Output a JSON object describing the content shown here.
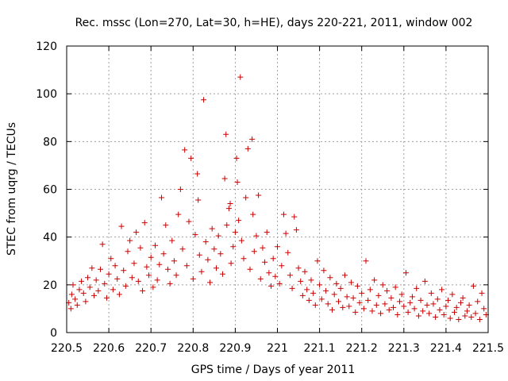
{
  "chart_data": {
    "type": "scatter",
    "title": "Rec. mssc (Lon=270, Lat=30, h=HE), days 220-221, 2011, window 002",
    "xlabel": "GPS time / Days of year 2011",
    "ylabel": "STEC from uqrg / TECUs",
    "xlim": [
      220.5,
      221.5
    ],
    "ylim": [
      0,
      120
    ],
    "xticks": [
      "220.5",
      "220.6",
      "220.7",
      "220.8",
      "220.9",
      "221",
      "221.1",
      "221.2",
      "221.3",
      "221.4",
      "221.5"
    ],
    "yticks": [
      "0",
      "20",
      "40",
      "60",
      "80",
      "100",
      "120"
    ],
    "grid": true,
    "marker": "plus",
    "color": "#cc0000",
    "points": [
      [
        220.505,
        12.5
      ],
      [
        220.51,
        10.0
      ],
      [
        220.512,
        16.0
      ],
      [
        220.515,
        20.0
      ],
      [
        220.52,
        14.0
      ],
      [
        220.525,
        11.5
      ],
      [
        220.53,
        18.0
      ],
      [
        220.535,
        21.5
      ],
      [
        220.54,
        16.5
      ],
      [
        220.545,
        13.0
      ],
      [
        220.55,
        23.0
      ],
      [
        220.555,
        19.0
      ],
      [
        220.56,
        27.0
      ],
      [
        220.565,
        15.5
      ],
      [
        220.57,
        22.0
      ],
      [
        220.575,
        17.5
      ],
      [
        220.58,
        26.5
      ],
      [
        220.585,
        37.0
      ],
      [
        220.59,
        20.5
      ],
      [
        220.595,
        14.5
      ],
      [
        220.6,
        24.5
      ],
      [
        220.605,
        31.0
      ],
      [
        220.61,
        18.0
      ],
      [
        220.615,
        28.0
      ],
      [
        220.62,
        22.5
      ],
      [
        220.625,
        16.0
      ],
      [
        220.63,
        44.5
      ],
      [
        220.635,
        26.0
      ],
      [
        220.64,
        19.5
      ],
      [
        220.645,
        34.0
      ],
      [
        220.65,
        38.5
      ],
      [
        220.655,
        23.0
      ],
      [
        220.66,
        29.0
      ],
      [
        220.665,
        42.0
      ],
      [
        220.67,
        21.5
      ],
      [
        220.675,
        35.5
      ],
      [
        220.68,
        17.5
      ],
      [
        220.685,
        46.0
      ],
      [
        220.69,
        27.5
      ],
      [
        220.695,
        24.0
      ],
      [
        220.7,
        31.5
      ],
      [
        220.705,
        19.0
      ],
      [
        220.71,
        36.5
      ],
      [
        220.715,
        22.0
      ],
      [
        220.72,
        28.5
      ],
      [
        220.725,
        56.5
      ],
      [
        220.73,
        33.0
      ],
      [
        220.735,
        45.0
      ],
      [
        220.74,
        26.5
      ],
      [
        220.745,
        20.5
      ],
      [
        220.75,
        38.5
      ],
      [
        220.755,
        30.0
      ],
      [
        220.76,
        24.0
      ],
      [
        220.765,
        49.5
      ],
      [
        220.77,
        60.0
      ],
      [
        220.775,
        35.0
      ],
      [
        220.78,
        76.5
      ],
      [
        220.785,
        28.0
      ],
      [
        220.79,
        46.5
      ],
      [
        220.795,
        73.0
      ],
      [
        220.8,
        22.5
      ],
      [
        220.805,
        41.0
      ],
      [
        220.81,
        66.5
      ],
      [
        220.812,
        55.5
      ],
      [
        220.815,
        32.5
      ],
      [
        220.82,
        25.5
      ],
      [
        220.825,
        97.5
      ],
      [
        220.83,
        38.0
      ],
      [
        220.835,
        30.5
      ],
      [
        220.84,
        21.0
      ],
      [
        220.845,
        43.5
      ],
      [
        220.85,
        35.0
      ],
      [
        220.855,
        27.0
      ],
      [
        220.86,
        40.5
      ],
      [
        220.865,
        33.0
      ],
      [
        220.87,
        24.5
      ],
      [
        220.875,
        64.5
      ],
      [
        220.878,
        83.0
      ],
      [
        220.88,
        45.0
      ],
      [
        220.885,
        52.0
      ],
      [
        220.888,
        54.0
      ],
      [
        220.89,
        29.0
      ],
      [
        220.895,
        36.0
      ],
      [
        220.9,
        42.0
      ],
      [
        220.903,
        73.0
      ],
      [
        220.905,
        63.0
      ],
      [
        220.908,
        47.0
      ],
      [
        220.912,
        107.0
      ],
      [
        220.915,
        38.5
      ],
      [
        220.92,
        31.0
      ],
      [
        220.925,
        56.5
      ],
      [
        220.93,
        77.0
      ],
      [
        220.935,
        26.5
      ],
      [
        220.94,
        81.0
      ],
      [
        220.942,
        49.5
      ],
      [
        220.945,
        34.0
      ],
      [
        220.95,
        40.5
      ],
      [
        220.955,
        57.5
      ],
      [
        220.96,
        22.5
      ],
      [
        220.965,
        35.5
      ],
      [
        220.97,
        29.5
      ],
      [
        220.975,
        42.0
      ],
      [
        220.98,
        25.0
      ],
      [
        220.985,
        19.5
      ],
      [
        220.99,
        31.0
      ],
      [
        220.995,
        23.5
      ],
      [
        221.0,
        36.0
      ],
      [
        221.005,
        20.5
      ],
      [
        221.01,
        28.0
      ],
      [
        221.015,
        49.5
      ],
      [
        221.02,
        41.5
      ],
      [
        221.025,
        33.5
      ],
      [
        221.03,
        24.0
      ],
      [
        221.035,
        18.5
      ],
      [
        221.04,
        48.5
      ],
      [
        221.045,
        43.0
      ],
      [
        221.05,
        27.0
      ],
      [
        221.055,
        21.5
      ],
      [
        221.06,
        15.5
      ],
      [
        221.065,
        25.5
      ],
      [
        221.07,
        18.0
      ],
      [
        221.075,
        13.5
      ],
      [
        221.08,
        22.0
      ],
      [
        221.085,
        16.5
      ],
      [
        221.09,
        11.5
      ],
      [
        221.095,
        30.0
      ],
      [
        221.1,
        20.0
      ],
      [
        221.105,
        14.0
      ],
      [
        221.11,
        26.0
      ],
      [
        221.115,
        17.5
      ],
      [
        221.12,
        12.0
      ],
      [
        221.125,
        23.0
      ],
      [
        221.13,
        9.5
      ],
      [
        221.135,
        16.0
      ],
      [
        221.14,
        20.5
      ],
      [
        221.145,
        13.0
      ],
      [
        221.15,
        18.5
      ],
      [
        221.155,
        10.5
      ],
      [
        221.16,
        24.0
      ],
      [
        221.165,
        15.0
      ],
      [
        221.17,
        11.0
      ],
      [
        221.175,
        21.0
      ],
      [
        221.18,
        14.5
      ],
      [
        221.185,
        8.5
      ],
      [
        221.19,
        19.5
      ],
      [
        221.195,
        12.5
      ],
      [
        221.2,
        16.5
      ],
      [
        221.205,
        10.0
      ],
      [
        221.21,
        30.0
      ],
      [
        221.215,
        13.5
      ],
      [
        221.22,
        18.0
      ],
      [
        221.225,
        9.0
      ],
      [
        221.23,
        22.0
      ],
      [
        221.235,
        11.5
      ],
      [
        221.24,
        15.5
      ],
      [
        221.245,
        8.0
      ],
      [
        221.25,
        20.0
      ],
      [
        221.255,
        12.0
      ],
      [
        221.26,
        17.5
      ],
      [
        221.265,
        9.5
      ],
      [
        221.27,
        14.5
      ],
      [
        221.275,
        10.5
      ],
      [
        221.28,
        19.0
      ],
      [
        221.285,
        7.5
      ],
      [
        221.29,
        13.0
      ],
      [
        221.295,
        16.0
      ],
      [
        221.3,
        11.0
      ],
      [
        221.305,
        25.0
      ],
      [
        221.31,
        8.5
      ],
      [
        221.315,
        12.5
      ],
      [
        221.32,
        15.0
      ],
      [
        221.325,
        10.0
      ],
      [
        221.33,
        18.5
      ],
      [
        221.335,
        7.0
      ],
      [
        221.34,
        13.5
      ],
      [
        221.345,
        9.0
      ],
      [
        221.35,
        21.5
      ],
      [
        221.355,
        11.5
      ],
      [
        221.36,
        8.0
      ],
      [
        221.365,
        16.5
      ],
      [
        221.37,
        12.0
      ],
      [
        221.375,
        6.5
      ],
      [
        221.38,
        14.0
      ],
      [
        221.385,
        9.5
      ],
      [
        221.39,
        18.0
      ],
      [
        221.395,
        7.5
      ],
      [
        221.4,
        11.0
      ],
      [
        221.405,
        13.5
      ],
      [
        221.41,
        6.0
      ],
      [
        221.415,
        16.0
      ],
      [
        221.42,
        8.5
      ],
      [
        221.425,
        10.5
      ],
      [
        221.43,
        5.5
      ],
      [
        221.435,
        12.5
      ],
      [
        221.44,
        14.5
      ],
      [
        221.445,
        7.0
      ],
      [
        221.45,
        9.0
      ],
      [
        221.455,
        11.5
      ],
      [
        221.46,
        6.5
      ],
      [
        221.465,
        19.5
      ],
      [
        221.47,
        8.0
      ],
      [
        221.475,
        13.0
      ],
      [
        221.48,
        5.5
      ],
      [
        221.485,
        16.5
      ],
      [
        221.49,
        10.0
      ],
      [
        221.495,
        7.5
      ]
    ]
  }
}
